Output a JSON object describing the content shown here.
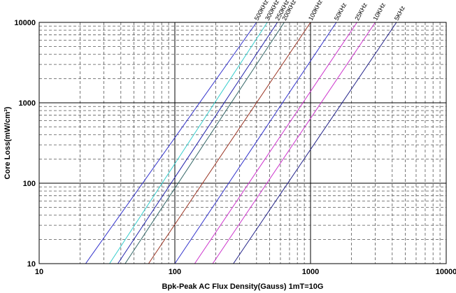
{
  "chart_data": {
    "type": "line",
    "xlabel": "Bpk-Peak AC Flux Density(Gauss)  1mT=10G",
    "ylabel": "Core Loss(mW/cm³)",
    "x_scale": "log",
    "y_scale": "log",
    "xlim": [
      10,
      10000
    ],
    "ylim": [
      10,
      10000
    ],
    "x_ticks": [
      "10",
      "100",
      "1000",
      "10000"
    ],
    "y_ticks": [
      "10",
      "100",
      "1000",
      "10000"
    ],
    "grid": true,
    "series": [
      {
        "name": "500KHz",
        "color": "#3333cc",
        "points": [
          [
            22,
            10
          ],
          [
            400,
            10000
          ]
        ]
      },
      {
        "name": "300KHz",
        "color": "#33cccc",
        "points": [
          [
            33,
            10
          ],
          [
            480,
            10000
          ]
        ]
      },
      {
        "name": "250KHz",
        "color": "#2222aa",
        "points": [
          [
            38,
            10
          ],
          [
            570,
            10000
          ]
        ]
      },
      {
        "name": "200KHz",
        "color": "#336666",
        "points": [
          [
            43,
            10
          ],
          [
            640,
            10000
          ]
        ]
      },
      {
        "name": "100KHz",
        "color": "#993322",
        "points": [
          [
            64,
            10
          ],
          [
            1000,
            10000
          ]
        ]
      },
      {
        "name": "50KHz",
        "color": "#3333cc",
        "points": [
          [
            100,
            10
          ],
          [
            1550,
            10000
          ]
        ]
      },
      {
        "name": "25KHz",
        "color": "#cc33cc",
        "points": [
          [
            140,
            10
          ],
          [
            2200,
            10000
          ]
        ]
      },
      {
        "name": "10KHz",
        "color": "#cc33cc",
        "points": [
          [
            190,
            10
          ],
          [
            3000,
            10000
          ]
        ]
      },
      {
        "name": "5KHz",
        "color": "#222288",
        "points": [
          [
            270,
            10
          ],
          [
            4300,
            10000
          ]
        ]
      }
    ]
  }
}
